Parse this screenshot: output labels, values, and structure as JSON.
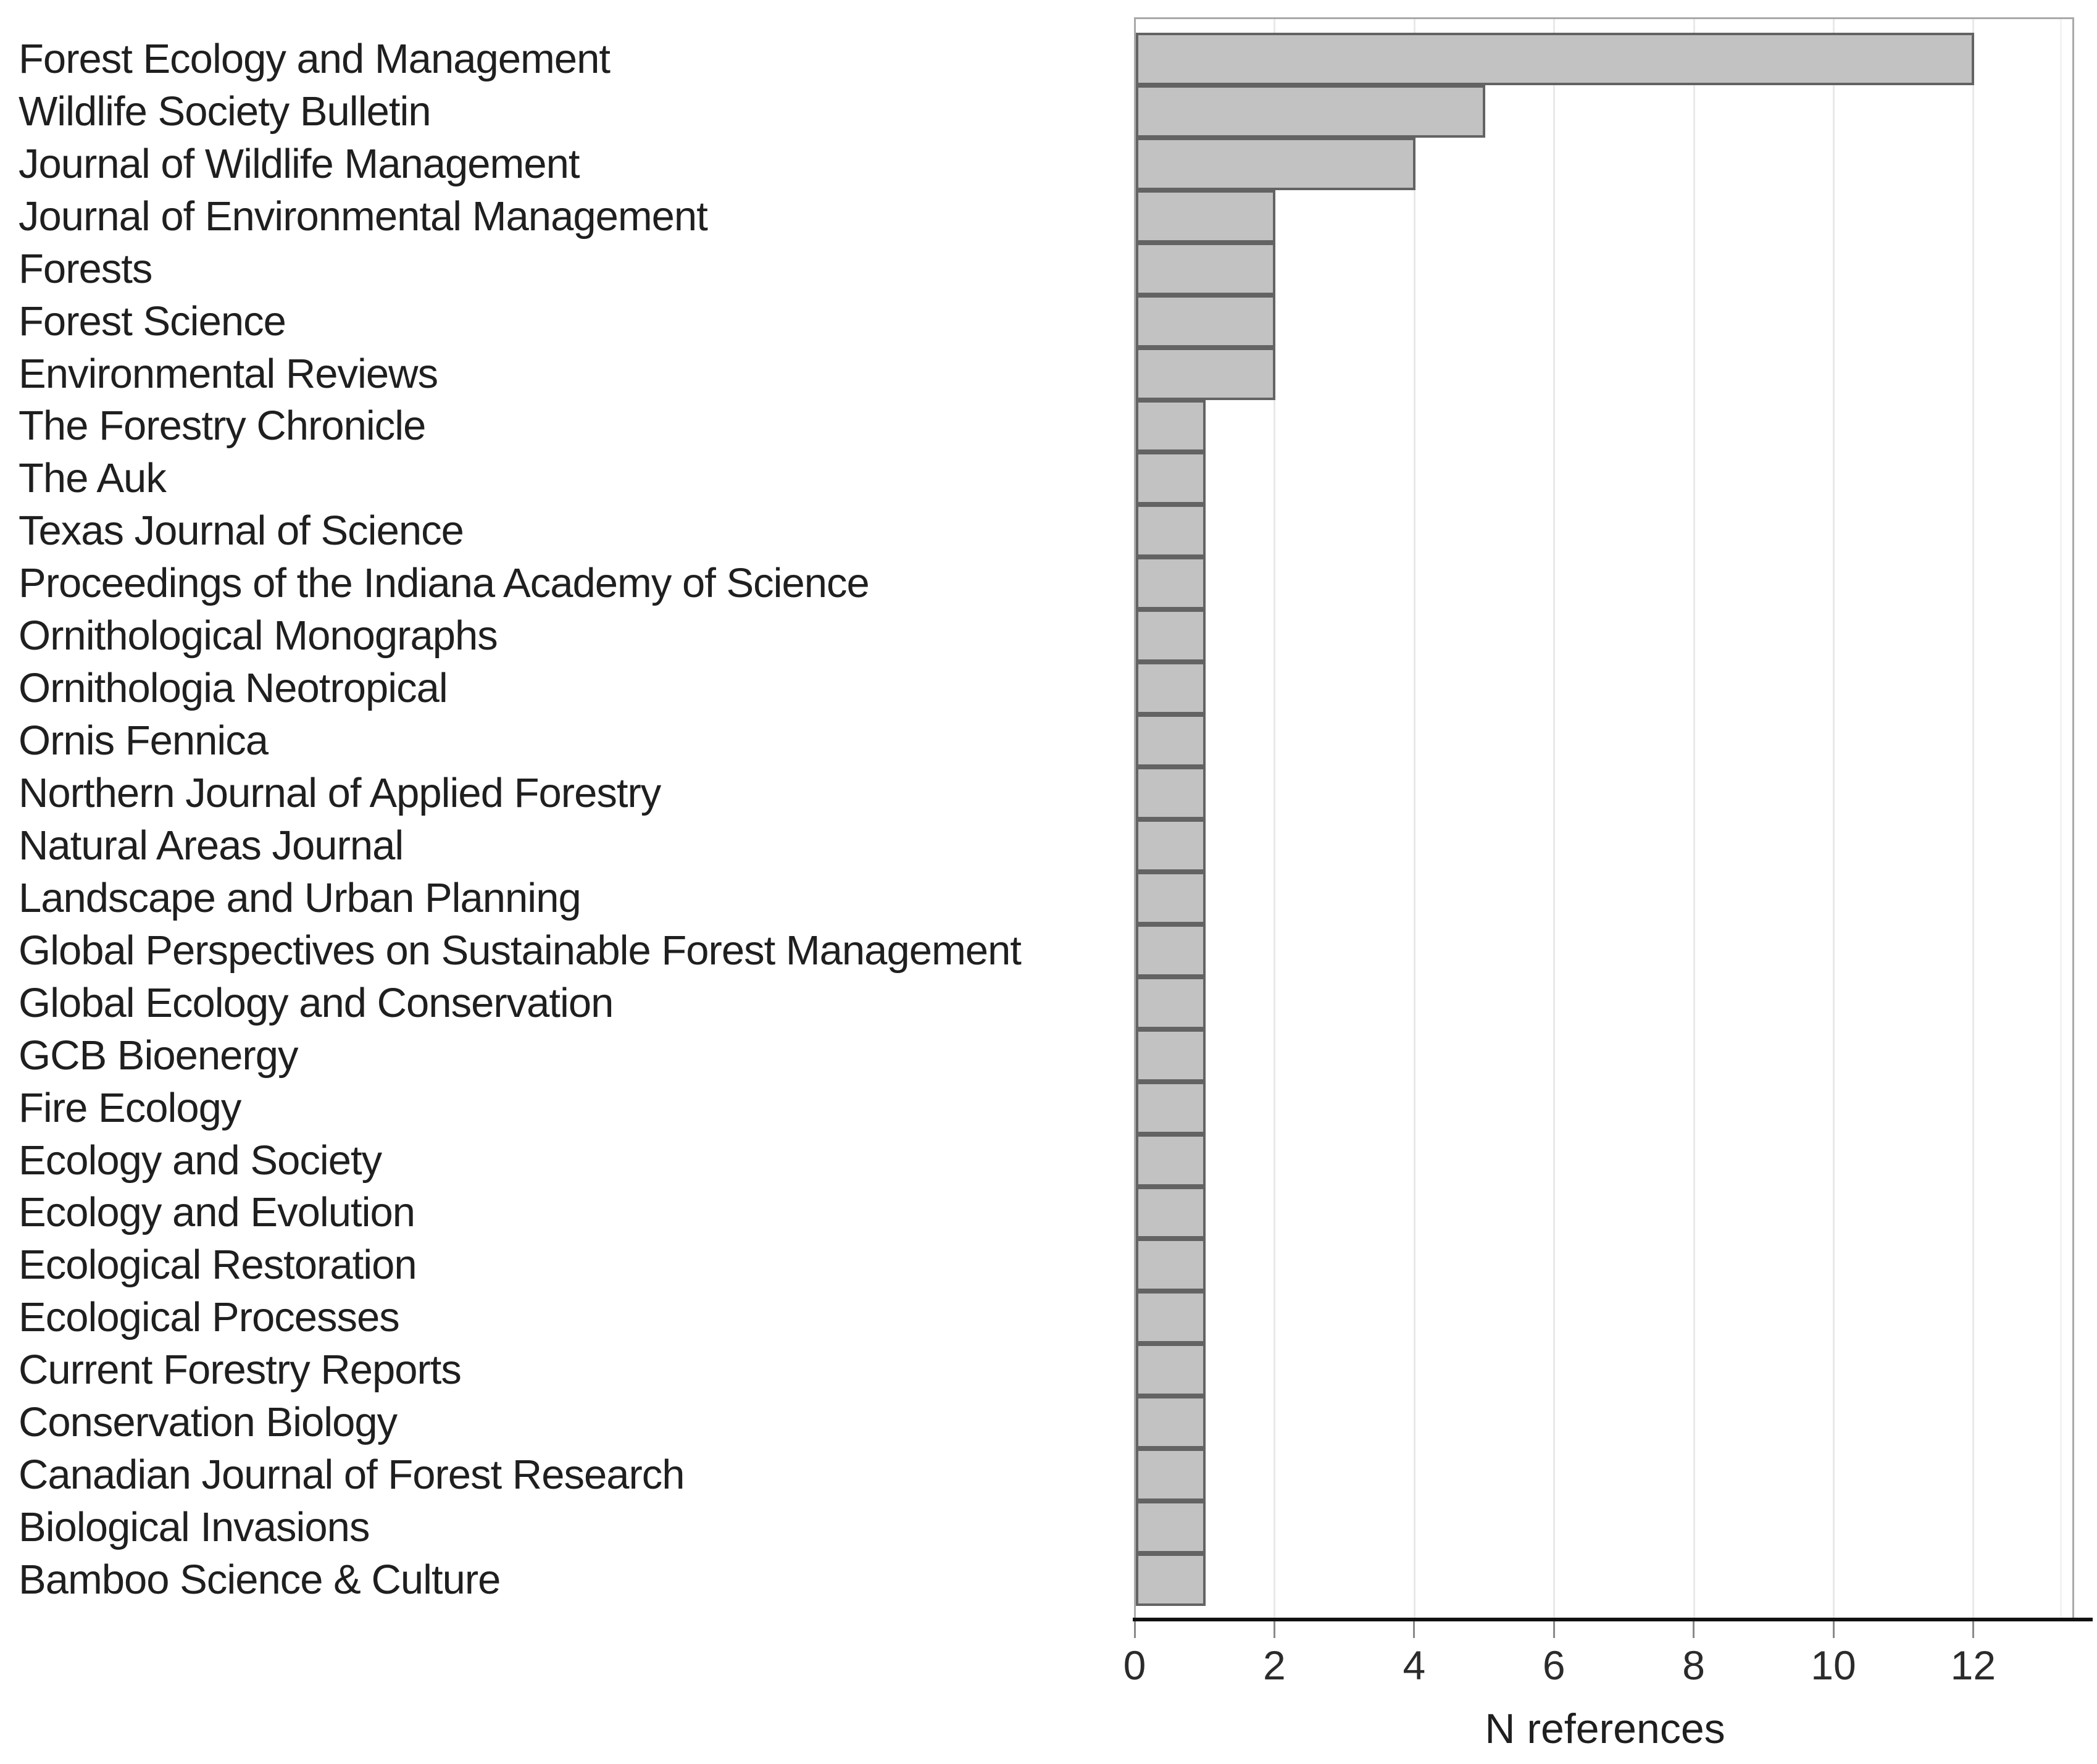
{
  "chart_data": {
    "type": "bar",
    "orientation": "horizontal",
    "title": "",
    "xlabel": "N references",
    "ylabel": "",
    "categories": [
      "Forest Ecology and Management",
      "Wildlife Society Bulletin",
      "Journal of Wildlife Management",
      "Journal of Environmental Management",
      "Forests",
      "Forest Science",
      "Environmental Reviews",
      "The Forestry Chronicle",
      "The Auk",
      "Texas Journal of Science",
      "Proceedings of the Indiana Academy of Science",
      "Ornithological Monographs",
      "Ornithologia Neotropical",
      "Ornis Fennica",
      "Northern Journal of Applied Forestry",
      "Natural Areas Journal",
      "Landscape and Urban Planning",
      "Global Perspectives on Sustainable Forest Management",
      "Global Ecology and Conservation",
      "GCB Bioenergy",
      "Fire Ecology",
      "Ecology and Society",
      "Ecology and Evolution",
      "Ecological Restoration",
      "Ecological Processes",
      "Current Forestry Reports",
      "Conservation Biology",
      "Canadian Journal of Forest Research",
      "Biological Invasions",
      "Bamboo Science & Culture"
    ],
    "values": [
      12,
      5,
      4,
      2,
      2,
      2,
      2,
      1,
      1,
      1,
      1,
      1,
      1,
      1,
      1,
      1,
      1,
      1,
      1,
      1,
      1,
      1,
      1,
      1,
      1,
      1,
      1,
      1,
      1,
      1
    ],
    "xticks": [
      0,
      2,
      4,
      6,
      8,
      10,
      12
    ],
    "xlim": [
      0,
      13.45
    ],
    "grid": "vertical-gridlines-at-even-ticks",
    "legend": "none",
    "colors": {
      "bar_fill": "#c2c2c2",
      "bar_border": "#636363",
      "gridline": "#e9e9e9",
      "frame": "#a9a9a9",
      "axis_line": "#111111",
      "text": "#1f1f1f"
    }
  }
}
